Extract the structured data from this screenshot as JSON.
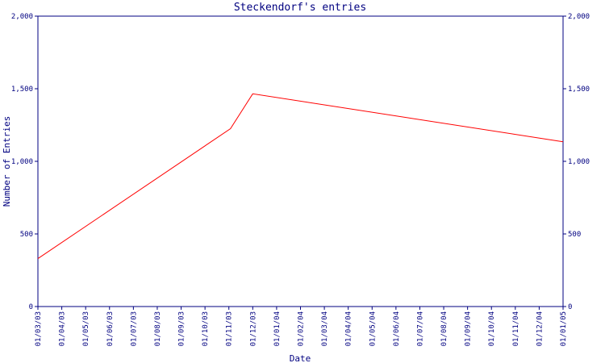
{
  "chart_data": {
    "type": "line",
    "title": "Steckendorf's entries",
    "xlabel": "Date",
    "ylabel": "Number of Entries",
    "ylim": [
      0,
      2000
    ],
    "y_ticks": [
      0,
      500,
      1000,
      1500,
      2000
    ],
    "y_tick_labels": [
      "0",
      "500",
      "1,000",
      "1,500",
      "2,000"
    ],
    "y_axis_right_mirror": true,
    "x_tick_labels": [
      "01/03/03",
      "01/04/03",
      "01/05/03",
      "01/06/03",
      "01/07/03",
      "01/08/03",
      "01/09/03",
      "01/10/03",
      "01/11/03",
      "01/12/03",
      "01/01/04",
      "01/02/04",
      "01/03/04",
      "01/04/04",
      "01/05/04",
      "01/06/04",
      "01/07/04",
      "01/08/04",
      "01/09/04",
      "01/10/04",
      "01/11/04",
      "01/12/04",
      "01/01/05"
    ],
    "grid": false,
    "line_color": "#ff0000",
    "axis_color": "#000080",
    "series": [
      {
        "x": [
          "01/03/03",
          "03/11/03",
          "01/12/03",
          "01/01/05"
        ],
        "values": [
          330,
          1225,
          1465,
          1135
        ]
      }
    ]
  }
}
